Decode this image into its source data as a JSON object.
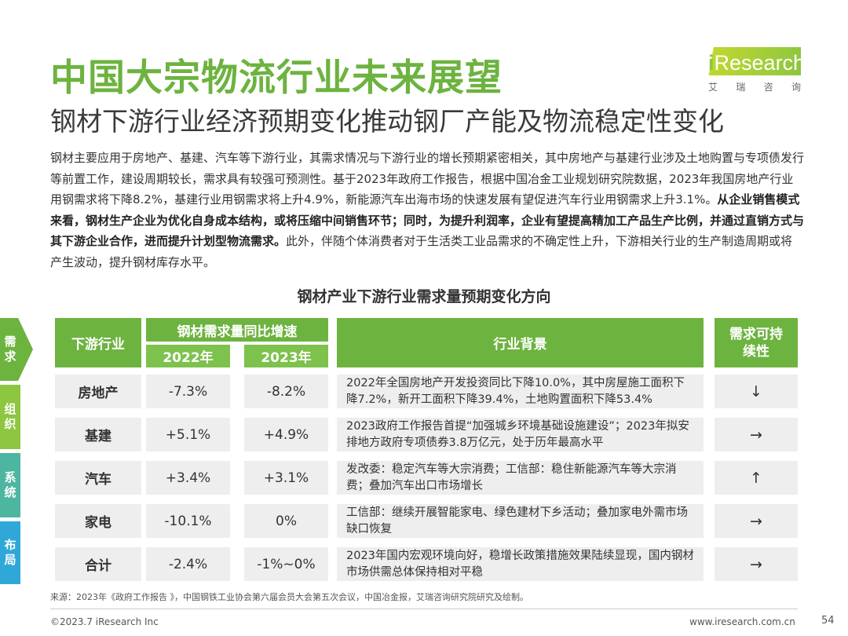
{
  "header": {
    "title": "中国大宗物流行业未来展望",
    "subtitle": "钢材下游行业经济预期变化推动钢厂产能及物流稳定性变化"
  },
  "logo": {
    "text_i": "i",
    "text_rest": "Research",
    "cn": [
      "艾",
      "瑞",
      "咨",
      "询"
    ]
  },
  "intro": {
    "p1": "钢材主要应用于房地产、基建、汽车等下游行业，其需求情况与下游行业的增长预期紧密相关，其中房地产与基建行业涉及土地购置与专项债发行等前置工作，建设周期较长，需求具有较强可预测性。基于2023年政府工作报告，根据中国冶金工业规划研究院数据，2023年我国房地产行业用钢需求将下降8.2%，基建行业用钢需求将上升4.9%，新能源汽车出海市场的快速发展有望促进汽车行业用钢需求上升3.1%。",
    "p2_bold": "从企业销售模式来看，钢材生产企业为优化自身成本结构，或将压缩中间销售环节；同时，为提升利润率，企业有望提高精加工产品生产比例，并通过直销方式与其下游企业合作，进而提升计划型物流需求。",
    "p3": "此外，伴随个体消费者对于生活类工业品需求的不确定性上升，下游相关行业的生产制造周期或将产生波动，提升钢材库存水平。"
  },
  "table": {
    "title": "钢材产业下游行业需求量预期变化方向",
    "headers": {
      "industry": "下游行业",
      "growth": "钢材需求量同比增速",
      "y2022": "2022年",
      "y2023": "2023年",
      "background": "行业背景",
      "sustain": "需求可持续性"
    },
    "rows": [
      {
        "industry": "房地产",
        "v2022": "-7.3%",
        "v2023": "-8.2%",
        "background": "2022年全国房地产开发投资同比下降10.0%，其中房屋施工面积下降7.2%，新开工面积下降39.4%，土地购置面积下降53.4%",
        "trend": "↓"
      },
      {
        "industry": "基建",
        "v2022": "+5.1%",
        "v2023": "+4.9%",
        "background": "2023政府工作报告首提“加强城乡环境基础设施建设”；2023年拟安排地方政府专项债券3.8万亿元，处于历年最高水平",
        "trend": "→"
      },
      {
        "industry": "汽车",
        "v2022": "+3.4%",
        "v2023": "+3.1%",
        "background": "发改委：稳定汽车等大宗消费；工信部：稳住新能源汽车等大宗消费；叠加汽车出口市场增长",
        "trend": "↑"
      },
      {
        "industry": "家电",
        "v2022": "-10.1%",
        "v2023": "0%",
        "background": "工信部：继续开展智能家电、绿色建材下乡活动；叠加家电外需市场缺口恢复",
        "trend": "→"
      },
      {
        "industry": "合计",
        "v2022": "-2.4%",
        "v2023": "-1%~0%",
        "background": "2023年国内宏观环境向好，稳增长政策措施效果陆续显现，国内钢材市场供需总体保持相对平稳",
        "trend": "→"
      }
    ]
  },
  "side_tabs": [
    {
      "label": "需求",
      "color": "#6DB33F"
    },
    {
      "label": "组织",
      "color": "#8DC63F"
    },
    {
      "label": "系统",
      "color": "#4DB6A0"
    },
    {
      "label": "布局",
      "color": "#2FA8D8"
    }
  ],
  "footer": {
    "source": "来源：2023年《政府工作报告 》，中国钢铁工业协会第六届会员大会第五次会议，中国冶金报，艾瑞咨询研究院研究及绘制。",
    "copyright": "©2023.7 iResearch Inc",
    "website": "www.iresearch.com.cn",
    "page": "54"
  }
}
